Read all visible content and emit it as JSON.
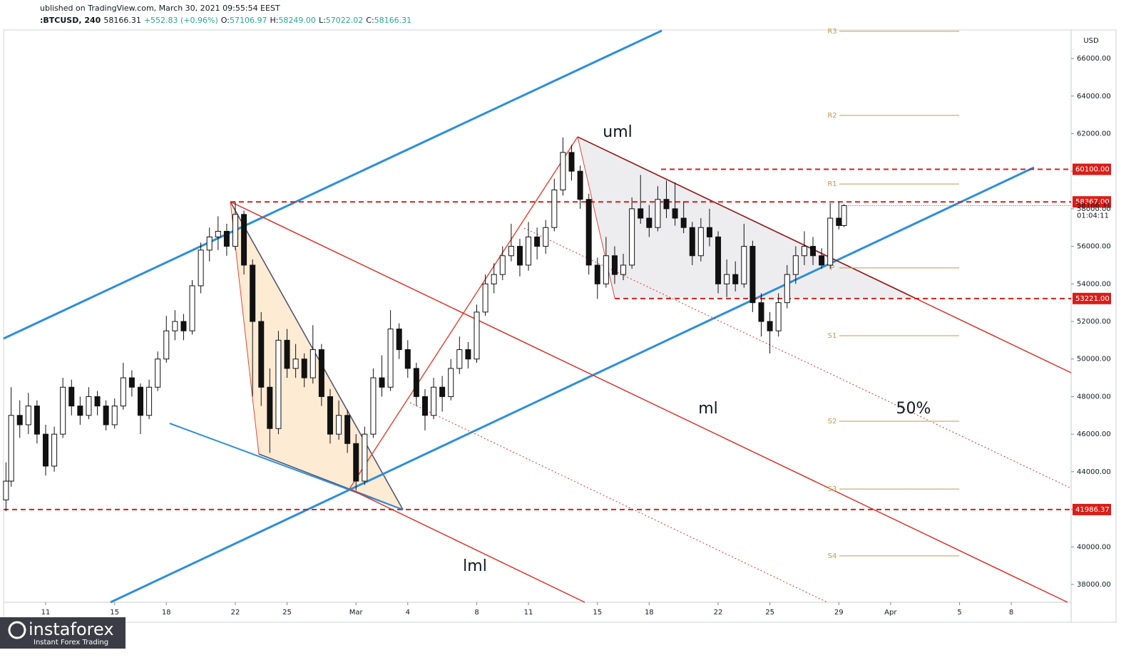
{
  "header": {
    "published": "ublished on TradingView.com, March 30, 2021 09:55:54 EEST",
    "symbol": ":BTCUSD, 240",
    "last": "58166.31",
    "change": "+552.83 (+0.96%)",
    "o_label": "O:",
    "o": "57106.97",
    "h_label": "H:",
    "h": "58249.00",
    "l_label": "L:",
    "l": "57022.02",
    "c_label": "C:",
    "c": "58166.31"
  },
  "logo": {
    "name": "instaforex",
    "tagline": "Instant Forex Trading"
  },
  "chart_data": {
    "type": "candlestick",
    "currency": "USD",
    "xlim": [
      -2.44,
      59.47
    ],
    "xticks": [
      {
        "value": 0,
        "label": "11"
      },
      {
        "value": 4,
        "label": "15"
      },
      {
        "value": 7,
        "label": "18"
      },
      {
        "value": 11,
        "label": "22"
      },
      {
        "value": 14,
        "label": "25"
      },
      {
        "value": 18,
        "label": "Mar"
      },
      {
        "value": 21,
        "label": "4"
      },
      {
        "value": 25,
        "label": "8"
      },
      {
        "value": 28,
        "label": "11"
      },
      {
        "value": 32,
        "label": "15"
      },
      {
        "value": 35,
        "label": "18"
      },
      {
        "value": 39,
        "label": "22"
      },
      {
        "value": 42,
        "label": "25"
      },
      {
        "value": 46,
        "label": "29"
      },
      {
        "value": 49,
        "label": "Apr"
      },
      {
        "value": 53,
        "label": "5"
      },
      {
        "value": 56,
        "label": "8"
      }
    ],
    "ylim": [
      37050,
      67520
    ],
    "yticks": [
      {
        "value": 38000,
        "label": "38000.00"
      },
      {
        "value": 40000,
        "label": "40000.00"
      },
      {
        "value": 42000,
        "label": "42000.00"
      },
      {
        "value": 44000,
        "label": "44000.00"
      },
      {
        "value": 46000,
        "label": "46000.00"
      },
      {
        "value": 48000,
        "label": "48000.00"
      },
      {
        "value": 50000,
        "label": "50000.00"
      },
      {
        "value": 52000,
        "label": "52000.00"
      },
      {
        "value": 54000,
        "label": "54000.00"
      },
      {
        "value": 56000,
        "label": "56000.00"
      },
      {
        "value": 58000,
        "label": "58000.00"
      },
      {
        "value": 60000,
        "label": "60000.00"
      },
      {
        "value": 62000,
        "label": "62000.00"
      },
      {
        "value": 64000,
        "label": "64000.00"
      },
      {
        "value": 66000,
        "label": "66000.00"
      }
    ],
    "levels": [
      {
        "value": 60100,
        "label": "60100.00"
      },
      {
        "value": 58367,
        "label": "58367.00"
      },
      {
        "value": 53221,
        "label": "53221.00"
      },
      {
        "value": 41986.37,
        "label": "41986.37"
      }
    ],
    "current": {
      "value": 58166.31,
      "label": "58166.31",
      "countdown": "01:04:11"
    },
    "pivots": [
      {
        "name": "R3",
        "value": 67450
      },
      {
        "name": "R2",
        "value": 62970
      },
      {
        "name": "R1",
        "value": 59320
      },
      {
        "name": "P",
        "value": 54850
      },
      {
        "name": "S1",
        "value": 51240
      },
      {
        "name": "S2",
        "value": 46690
      },
      {
        "name": "S3",
        "value": 43080
      },
      {
        "name": "S4",
        "value": 39520
      }
    ],
    "annotations": [
      "uml",
      "ml",
      "lml",
      "50%"
    ],
    "candles": [
      [
        -2.3,
        42500,
        44500,
        41900,
        43500
      ],
      [
        -2,
        43500,
        48500,
        43200,
        47000
      ],
      [
        -1.5,
        47000,
        47800,
        45800,
        46500
      ],
      [
        -1,
        46500,
        48200,
        46000,
        47500
      ],
      [
        -0.5,
        47500,
        47800,
        45500,
        46000
      ],
      [
        0,
        46000,
        46500,
        43800,
        44300
      ],
      [
        0.5,
        44300,
        46400,
        44000,
        46000
      ],
      [
        1,
        46000,
        49000,
        45800,
        48500
      ],
      [
        1.5,
        48500,
        48900,
        47000,
        47500
      ],
      [
        2,
        47500,
        48000,
        46500,
        47000
      ],
      [
        2.5,
        47000,
        48500,
        46800,
        48000
      ],
      [
        3,
        48000,
        48300,
        47000,
        47500
      ],
      [
        3.5,
        47500,
        47800,
        46200,
        46500
      ],
      [
        4,
        46500,
        47900,
        46300,
        47500
      ],
      [
        4.5,
        47500,
        49800,
        47300,
        49000
      ],
      [
        5,
        49000,
        49400,
        48000,
        48500
      ],
      [
        5.5,
        48500,
        48700,
        46000,
        47000
      ],
      [
        6,
        47000,
        48900,
        46800,
        48500
      ],
      [
        6.5,
        48500,
        50400,
        48300,
        50000
      ],
      [
        7,
        50000,
        52300,
        49800,
        51500
      ],
      [
        7.5,
        51500,
        52600,
        51000,
        52000
      ],
      [
        8,
        52000,
        52400,
        51000,
        51500
      ],
      [
        8.5,
        51500,
        54200,
        51300,
        53900
      ],
      [
        9,
        53900,
        56200,
        53500,
        55800
      ],
      [
        9.5,
        55800,
        57000,
        55200,
        56500
      ],
      [
        10,
        56500,
        57600,
        55800,
        56800
      ],
      [
        10.5,
        56800,
        57200,
        55500,
        56000
      ],
      [
        11,
        56000,
        58367,
        55800,
        57700
      ],
      [
        11.5,
        57700,
        57900,
        54500,
        55000
      ],
      [
        12,
        55000,
        55300,
        48000,
        52000
      ],
      [
        12.5,
        52000,
        52500,
        47500,
        48500
      ],
      [
        13,
        48500,
        49500,
        45000,
        46300
      ],
      [
        13.5,
        46300,
        51500,
        46000,
        51000
      ],
      [
        14,
        51000,
        51600,
        49000,
        49500
      ],
      [
        14.5,
        49500,
        50800,
        49000,
        50000
      ],
      [
        15,
        50000,
        50300,
        48500,
        49000
      ],
      [
        15.5,
        49000,
        51800,
        48700,
        50500
      ],
      [
        16,
        50500,
        50800,
        47500,
        48000
      ],
      [
        16.5,
        48000,
        48400,
        45500,
        46000
      ],
      [
        17,
        46000,
        47800,
        45700,
        47000
      ],
      [
        17.5,
        47000,
        47300,
        45000,
        45500
      ],
      [
        18,
        45500,
        46000,
        43000,
        43500
      ],
      [
        18.5,
        43500,
        46400,
        43300,
        46000
      ],
      [
        19,
        46000,
        49500,
        45800,
        49000
      ],
      [
        19.5,
        49000,
        50200,
        48000,
        48500
      ],
      [
        20,
        48500,
        52600,
        48300,
        51600
      ],
      [
        20.5,
        51600,
        51900,
        50000,
        50500
      ],
      [
        21,
        50500,
        51000,
        49000,
        49500
      ],
      [
        21.5,
        49500,
        49800,
        47500,
        48000
      ],
      [
        22,
        48000,
        48400,
        46200,
        47000
      ],
      [
        22.5,
        47000,
        49000,
        46800,
        48500
      ],
      [
        23,
        48500,
        49100,
        47200,
        48000
      ],
      [
        23.5,
        48000,
        50000,
        47800,
        49500
      ],
      [
        24,
        49500,
        51200,
        49200,
        50500
      ],
      [
        24.5,
        50500,
        50900,
        49500,
        50000
      ],
      [
        25,
        50000,
        52900,
        49800,
        52500
      ],
      [
        25.5,
        52500,
        54500,
        52300,
        54000
      ],
      [
        26,
        54000,
        55100,
        53500,
        54500
      ],
      [
        26.5,
        54500,
        56000,
        54200,
        55500
      ],
      [
        27,
        55500,
        57200,
        55200,
        56000
      ],
      [
        27.5,
        56000,
        56400,
        54400,
        55000
      ],
      [
        28,
        55000,
        57300,
        54700,
        56500
      ],
      [
        28.5,
        56500,
        57000,
        55300,
        56000
      ],
      [
        29,
        56000,
        57400,
        55600,
        57000
      ],
      [
        29.5,
        57000,
        59600,
        56800,
        59000
      ],
      [
        30,
        59000,
        61800,
        58700,
        61000
      ],
      [
        30.5,
        61000,
        61400,
        59500,
        60000
      ],
      [
        31,
        60000,
        60300,
        58000,
        58500
      ],
      [
        31.5,
        58500,
        58800,
        54500,
        55000
      ],
      [
        32,
        55000,
        55400,
        53200,
        54000
      ],
      [
        32.5,
        54000,
        56500,
        53800,
        55500
      ],
      [
        33,
        55500,
        56000,
        54000,
        54500
      ],
      [
        33.5,
        54500,
        55600,
        54200,
        55000
      ],
      [
        34,
        55000,
        58600,
        54800,
        58000
      ],
      [
        34.5,
        58000,
        59800,
        57200,
        57500
      ],
      [
        35,
        57500,
        58200,
        56500,
        57000
      ],
      [
        35.5,
        57000,
        59200,
        56800,
        58500
      ],
      [
        36,
        58500,
        59500,
        57500,
        58000
      ],
      [
        36.5,
        58000,
        59400,
        57100,
        57500
      ],
      [
        37,
        57500,
        58400,
        56700,
        57000
      ],
      [
        37.5,
        57000,
        57300,
        55000,
        55500
      ],
      [
        38,
        55500,
        57500,
        55200,
        57000
      ],
      [
        38.5,
        57000,
        58000,
        56000,
        56500
      ],
      [
        39,
        56500,
        56800,
        53500,
        54000
      ],
      [
        39.5,
        54000,
        55300,
        53300,
        54500
      ],
      [
        40,
        54500,
        55200,
        53600,
        54000
      ],
      [
        40.5,
        54000,
        57200,
        53800,
        56000
      ],
      [
        41,
        56000,
        56300,
        52500,
        53000
      ],
      [
        41.5,
        53000,
        53500,
        51200,
        52000
      ],
      [
        42,
        52000,
        52500,
        50300,
        51500
      ],
      [
        42.5,
        51500,
        53500,
        51200,
        53000
      ],
      [
        43,
        53000,
        55000,
        52700,
        54500
      ],
      [
        43.5,
        54500,
        56000,
        54000,
        55500
      ],
      [
        44,
        55500,
        56800,
        55000,
        56000
      ],
      [
        44.5,
        56000,
        56500,
        55000,
        55500
      ],
      [
        45,
        55500,
        55900,
        54800,
        55000
      ],
      [
        45.5,
        55000,
        58300,
        54800,
        57500
      ],
      [
        46,
        57500,
        58400,
        56900,
        57107
      ],
      [
        46.3,
        57106.97,
        58249,
        57022.02,
        58166.31
      ]
    ]
  }
}
